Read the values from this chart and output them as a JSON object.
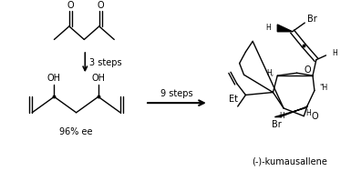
{
  "bg_color": "#ffffff",
  "line_color": "#000000",
  "fig_width": 3.85,
  "fig_height": 1.99,
  "dpi": 100,
  "ee_label": "96% ee",
  "product_label": "(-)-kumausallene",
  "arrow1_label": "3 steps",
  "arrow2_label": "9 steps"
}
